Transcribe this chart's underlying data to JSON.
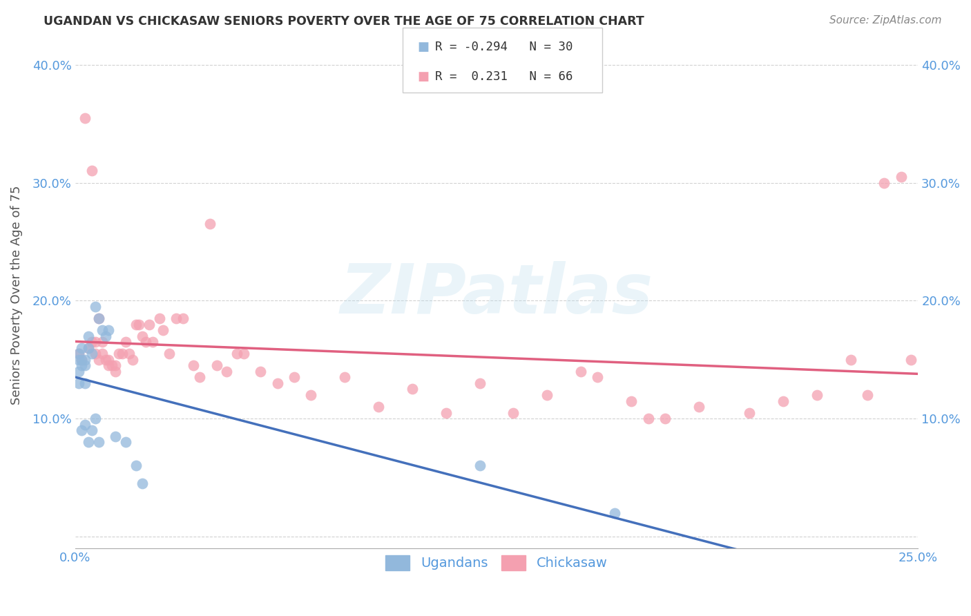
{
  "title": "UGANDAN VS CHICKASAW SENIORS POVERTY OVER THE AGE OF 75 CORRELATION CHART",
  "source": "Source: ZipAtlas.com",
  "ylabel": "Seniors Poverty Over the Age of 75",
  "xlim": [
    0.0,
    0.25
  ],
  "ylim": [
    -0.01,
    0.42
  ],
  "ugandan_color": "#92B8DC",
  "chickasaw_color": "#F4A0B0",
  "ugandan_line_color": "#4470BB",
  "chickasaw_line_color": "#E06080",
  "legend_R_ugandan": "-0.294",
  "legend_N_ugandan": "30",
  "legend_R_chickasaw": "0.231",
  "legend_N_chickasaw": "66",
  "watermark_text": "ZIPatlas",
  "background_color": "#ffffff",
  "ugandan_x": [
    0.001,
    0.001,
    0.001,
    0.001,
    0.002,
    0.002,
    0.002,
    0.002,
    0.003,
    0.003,
    0.003,
    0.003,
    0.004,
    0.004,
    0.004,
    0.005,
    0.005,
    0.006,
    0.006,
    0.007,
    0.007,
    0.008,
    0.009,
    0.01,
    0.012,
    0.015,
    0.018,
    0.02,
    0.12,
    0.16
  ],
  "ugandan_y": [
    0.155,
    0.15,
    0.14,
    0.13,
    0.16,
    0.15,
    0.145,
    0.09,
    0.15,
    0.145,
    0.13,
    0.095,
    0.17,
    0.16,
    0.08,
    0.155,
    0.09,
    0.195,
    0.1,
    0.185,
    0.08,
    0.175,
    0.17,
    0.175,
    0.085,
    0.08,
    0.06,
    0.045,
    0.06,
    0.02
  ],
  "chickasaw_x": [
    0.001,
    0.002,
    0.003,
    0.004,
    0.005,
    0.005,
    0.006,
    0.006,
    0.007,
    0.007,
    0.008,
    0.008,
    0.009,
    0.01,
    0.01,
    0.011,
    0.012,
    0.012,
    0.013,
    0.014,
    0.015,
    0.016,
    0.017,
    0.018,
    0.019,
    0.02,
    0.021,
    0.022,
    0.023,
    0.025,
    0.026,
    0.028,
    0.03,
    0.032,
    0.035,
    0.037,
    0.04,
    0.042,
    0.045,
    0.048,
    0.05,
    0.055,
    0.06,
    0.065,
    0.07,
    0.08,
    0.09,
    0.1,
    0.11,
    0.12,
    0.13,
    0.14,
    0.15,
    0.155,
    0.165,
    0.17,
    0.175,
    0.185,
    0.2,
    0.21,
    0.22,
    0.23,
    0.235,
    0.24,
    0.245,
    0.248
  ],
  "chickasaw_y": [
    0.155,
    0.15,
    0.355,
    0.16,
    0.165,
    0.31,
    0.155,
    0.165,
    0.15,
    0.185,
    0.165,
    0.155,
    0.15,
    0.15,
    0.145,
    0.145,
    0.145,
    0.14,
    0.155,
    0.155,
    0.165,
    0.155,
    0.15,
    0.18,
    0.18,
    0.17,
    0.165,
    0.18,
    0.165,
    0.185,
    0.175,
    0.155,
    0.185,
    0.185,
    0.145,
    0.135,
    0.265,
    0.145,
    0.14,
    0.155,
    0.155,
    0.14,
    0.13,
    0.135,
    0.12,
    0.135,
    0.11,
    0.125,
    0.105,
    0.13,
    0.105,
    0.12,
    0.14,
    0.135,
    0.115,
    0.1,
    0.1,
    0.11,
    0.105,
    0.115,
    0.12,
    0.15,
    0.12,
    0.3,
    0.305,
    0.15
  ]
}
